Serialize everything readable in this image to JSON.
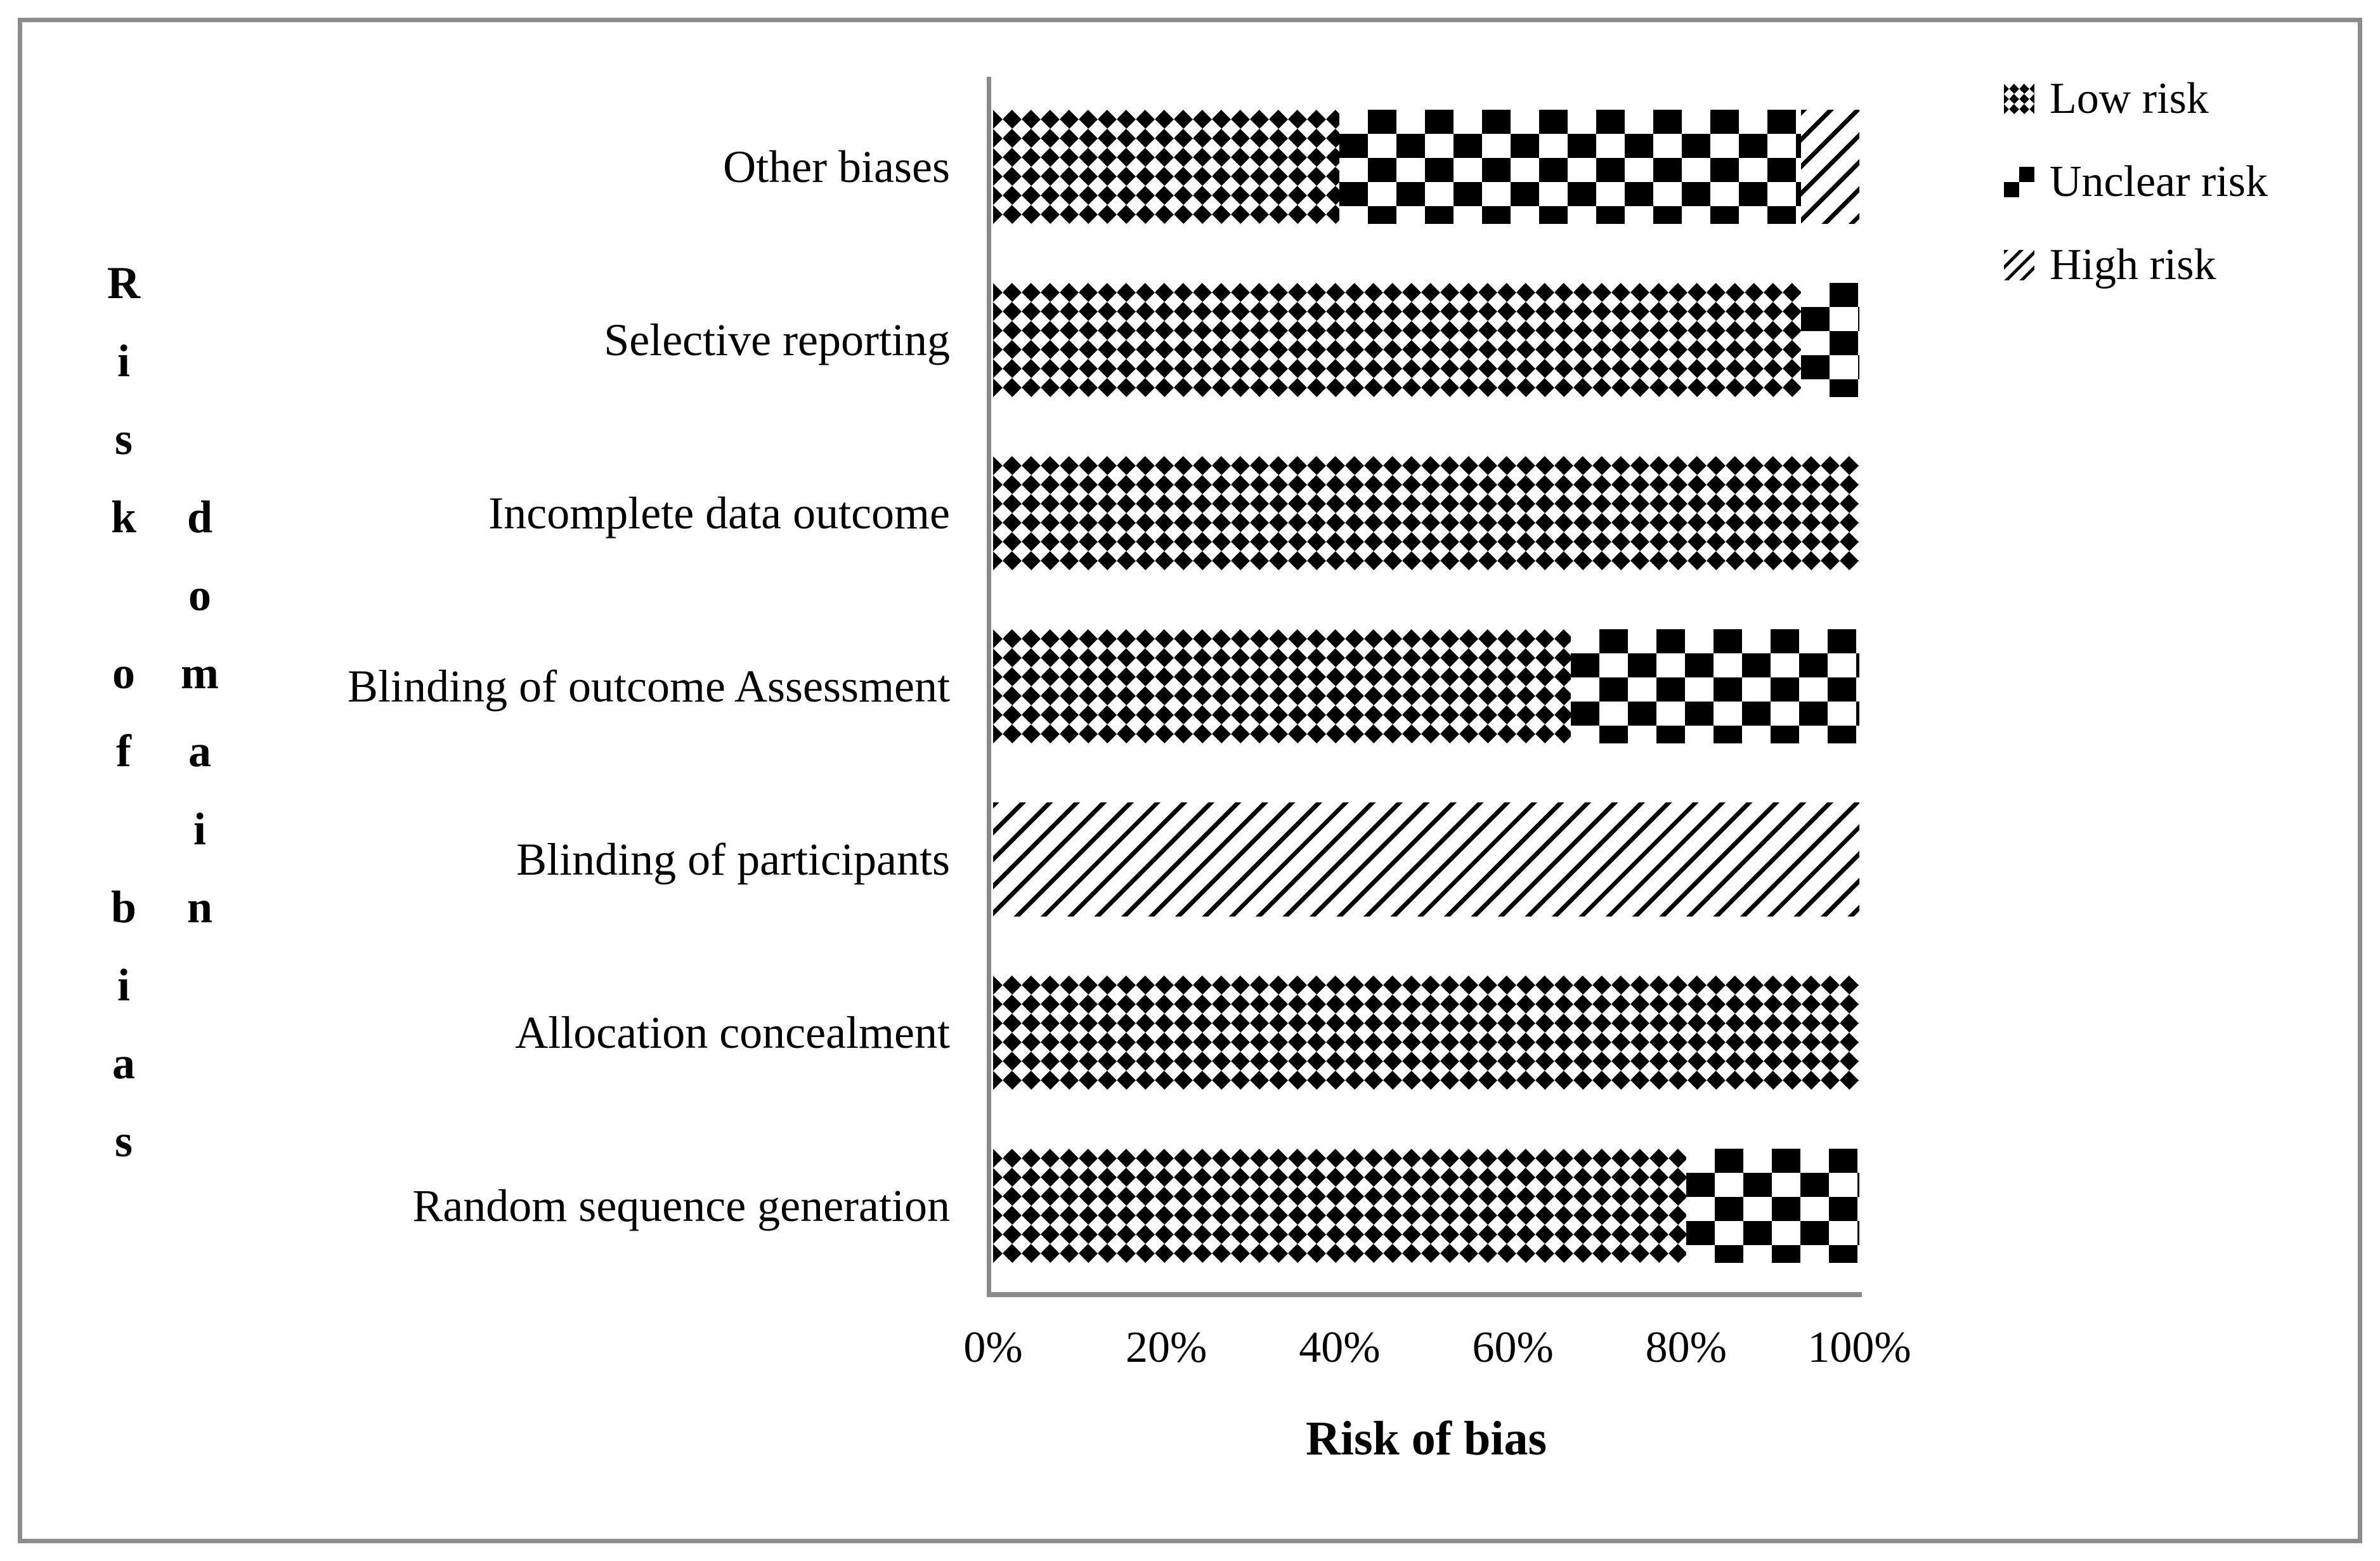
{
  "figure_title": "",
  "y_axis": {
    "label": "Risk of bias domain",
    "vertical_text_primary": [
      "R",
      "i",
      "s",
      "k",
      "",
      "o",
      "f",
      "",
      "b",
      "i",
      "a",
      "s"
    ],
    "vertical_text_secondary": [
      "d",
      "o",
      "m",
      "a",
      "i",
      "n"
    ]
  },
  "x_axis": {
    "label": "Risk of bias",
    "ticks": [
      "0%",
      "20%",
      "40%",
      "60%",
      "80%",
      "100%"
    ]
  },
  "legend": {
    "position": "top-right",
    "entries": [
      "Low risk",
      "Unclear risk",
      "High risk"
    ]
  },
  "colors": {
    "pattern_ink": "#000000",
    "axis_line": "#8a8a8a",
    "frame_border": "#8c8c8c",
    "background": "#ffffff"
  },
  "chart_data": {
    "type": "bar",
    "orientation": "horizontal-stacked",
    "title": "",
    "xlabel": "Risk of bias",
    "ylabel": "Risk of bias domain",
    "xlim": [
      0,
      100
    ],
    "x_ticks": [
      "0%",
      "20%",
      "40%",
      "60%",
      "80%",
      "100%"
    ],
    "grid": false,
    "legend_position": "top-right",
    "categories": [
      "Other biases",
      "Selective reporting",
      "Incomplete data outcome",
      "Blinding of outcome Assessment",
      "Blinding of participants",
      "Allocation concealment",
      "Random sequence generation"
    ],
    "series": [
      {
        "name": "Low risk",
        "pattern": "low",
        "pattern_desc": "fine dotted diamond checker",
        "values": [
          40.0,
          93.3,
          100.0,
          66.7,
          0.0,
          100.0,
          80.0
        ]
      },
      {
        "name": "Unclear risk",
        "pattern": "unclear",
        "pattern_desc": "large checkerboard",
        "values": [
          53.3,
          6.7,
          0.0,
          33.3,
          0.0,
          0.0,
          20.0
        ]
      },
      {
        "name": "High risk",
        "pattern": "high",
        "pattern_desc": "diagonal hatch stripes",
        "values": [
          6.7,
          0.0,
          0.0,
          0.0,
          100.0,
          0.0,
          0.0
        ]
      }
    ]
  }
}
